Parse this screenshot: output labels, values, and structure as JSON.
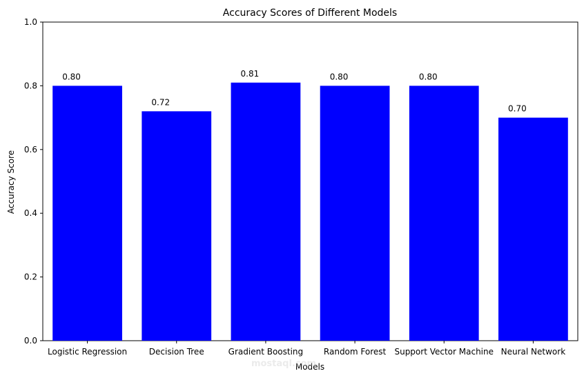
{
  "chart_data": {
    "type": "bar",
    "title": "Accuracy Scores of Different Models",
    "xlabel": "Models",
    "ylabel": "Accuracy Score",
    "categories": [
      "Logistic Regression",
      "Decision Tree",
      "Gradient Boosting",
      "Random Forest",
      "Support Vector Machine",
      "Neural Network"
    ],
    "values": [
      0.8,
      0.72,
      0.81,
      0.8,
      0.8,
      0.7
    ],
    "data_labels": [
      "0.80",
      "0.72",
      "0.81",
      "0.80",
      "0.80",
      "0.70"
    ],
    "ylim": [
      0,
      1
    ],
    "yticks": [
      0.0,
      0.2,
      0.4,
      0.6,
      0.8,
      1.0
    ],
    "ytick_labels": [
      "0.0",
      "0.2",
      "0.4",
      "0.6",
      "0.8",
      "1.0"
    ],
    "bar_color": "#0000ff",
    "grid": false,
    "legend": null
  },
  "watermark": {
    "text": "mostaql.com"
  }
}
